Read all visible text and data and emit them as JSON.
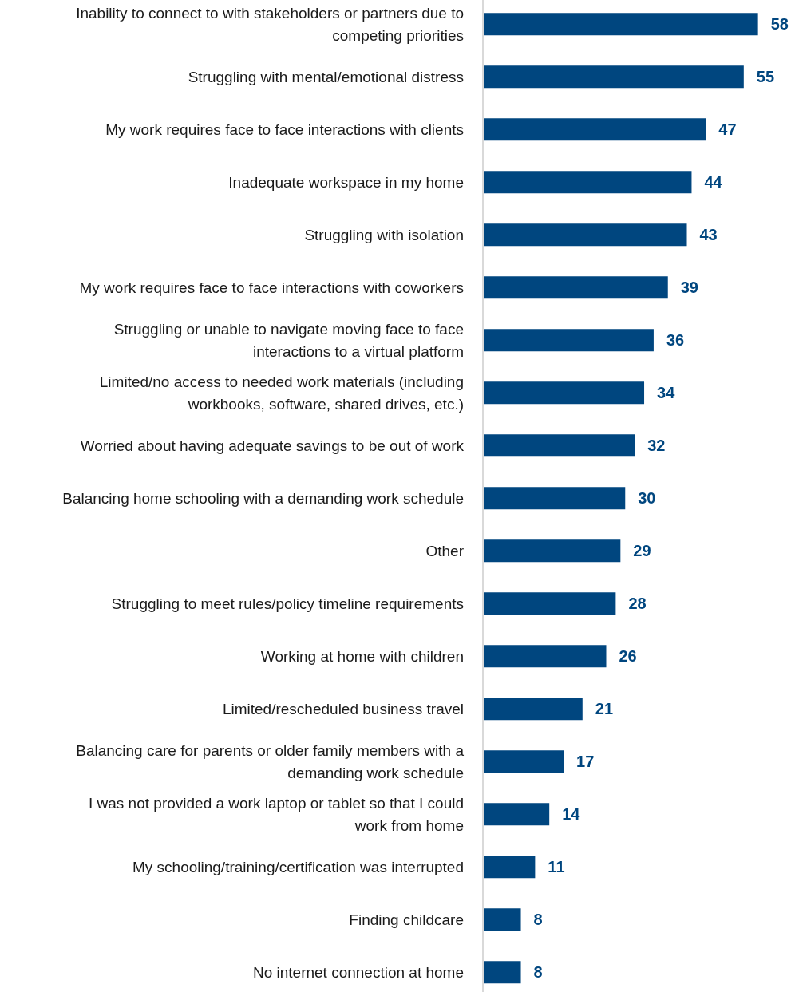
{
  "chart_data": {
    "type": "bar",
    "orientation": "horizontal",
    "color": "#00467f",
    "data_labels": true,
    "categories": [
      "Inability to connect to with stakeholders or partners due to competing priorities",
      "Struggling with mental/emotional distress",
      "My work requires face to face interactions with clients",
      "Inadequate workspace in my home",
      "Struggling with isolation",
      "My work requires face to face interactions with coworkers",
      "Struggling or unable to navigate moving face to face interactions to a virtual platform",
      "Limited/no access to needed work materials (including workbooks, software, shared drives, etc.)",
      "Worried about having adequate savings to be out of work",
      "Balancing home schooling with a demanding work schedule",
      "Other",
      "Struggling to meet rules/policy timeline requirements",
      "Working at home with children",
      "Limited/rescheduled business travel",
      "Balancing care for parents or older family members with a demanding work schedule",
      "I was not provided a work laptop or tablet so that I could work from home",
      "My schooling/training/certification was interrupted",
      "Finding childcare",
      "No internet connection at home"
    ],
    "values": [
      58,
      55,
      47,
      44,
      43,
      39,
      36,
      34,
      32,
      30,
      29,
      28,
      26,
      21,
      17,
      14,
      11,
      8,
      8
    ]
  }
}
